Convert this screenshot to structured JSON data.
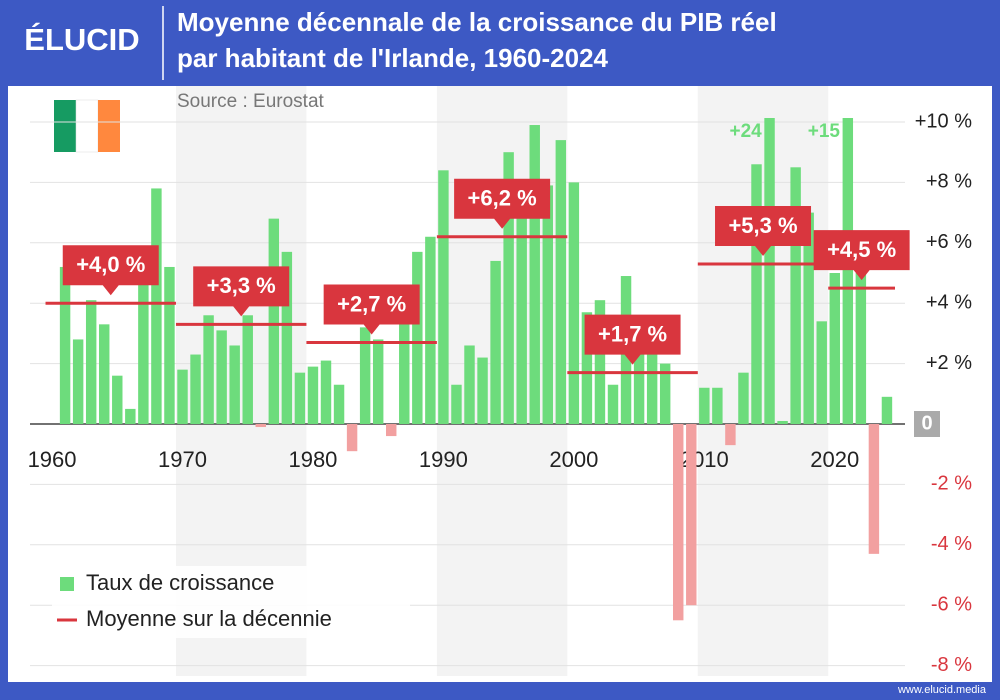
{
  "header": {
    "logo": "ÉLUCID",
    "title_lines": [
      "Moyenne décennale de la croissance du PIB réel",
      "par habitant de l'Irlande, 1960-2024"
    ],
    "source": "Source : Eurostat"
  },
  "footer": {
    "url": "www.elucid.media"
  },
  "chart_data": {
    "type": "bar",
    "xlim": [
      1959,
      2025
    ],
    "xticks": [
      1960,
      1970,
      1980,
      1990,
      2000,
      2010,
      2020
    ],
    "ylim": [
      -8,
      10
    ],
    "yticks": [
      {
        "value": 10,
        "label": "+10 %"
      },
      {
        "value": 8,
        "label": "+8 %"
      },
      {
        "value": 6,
        "label": "+6 %"
      },
      {
        "value": 4,
        "label": "+4 %"
      },
      {
        "value": 2,
        "label": "+2 %"
      },
      0,
      {
        "value": -2,
        "label": "-2 %"
      },
      {
        "value": -4,
        "label": "-4 %"
      },
      {
        "value": -6,
        "label": "-6 %"
      },
      {
        "value": -8,
        "label": "-8 %"
      }
    ],
    "grid": true,
    "legend": "lower left",
    "series": [
      {
        "name": "Taux de croissance",
        "color": "#6ddc7c",
        "negative_color": "#f2a0a0",
        "x": [
          1961,
          1962,
          1963,
          1964,
          1965,
          1966,
          1967,
          1968,
          1969,
          1970,
          1971,
          1972,
          1973,
          1974,
          1975,
          1976,
          1977,
          1978,
          1979,
          1980,
          1981,
          1982,
          1983,
          1984,
          1985,
          1986,
          1987,
          1988,
          1989,
          1990,
          1991,
          1992,
          1993,
          1994,
          1995,
          1996,
          1997,
          1998,
          1999,
          2000,
          2001,
          2002,
          2003,
          2004,
          2005,
          2006,
          2007,
          2008,
          2009,
          2010,
          2011,
          2012,
          2013,
          2014,
          2015,
          2016,
          2017,
          2018,
          2019,
          2020,
          2021,
          2022,
          2023,
          2024
        ],
        "values": [
          5.2,
          2.8,
          4.1,
          3.3,
          1.6,
          0.5,
          5.2,
          7.8,
          5.2,
          1.8,
          2.3,
          3.6,
          3.1,
          2.6,
          3.6,
          -0.1,
          6.8,
          5.7,
          1.7,
          1.9,
          2.1,
          1.3,
          -0.9,
          3.2,
          2.8,
          -0.4,
          4.4,
          5.7,
          6.2,
          8.4,
          1.3,
          2.6,
          2.2,
          5.4,
          9.0,
          7.5,
          9.9,
          7.9,
          9.4,
          8.0,
          3.7,
          4.1,
          1.3,
          4.9,
          2.5,
          2.5,
          2.0,
          -6.5,
          -6.0,
          1.2,
          1.2,
          -0.7,
          1.7,
          8.6,
          24,
          0.1,
          8.5,
          7.0,
          3.4,
          5.0,
          15,
          5.0,
          -4.3,
          0.9
        ],
        "value_labels": [
          null,
          null,
          null,
          null,
          null,
          null,
          null,
          null,
          null,
          null,
          null,
          null,
          null,
          null,
          null,
          null,
          null,
          null,
          null,
          null,
          null,
          null,
          null,
          null,
          null,
          null,
          null,
          null,
          null,
          null,
          null,
          null,
          null,
          null,
          null,
          null,
          null,
          null,
          null,
          null,
          null,
          null,
          null,
          null,
          null,
          null,
          null,
          null,
          null,
          null,
          null,
          null,
          null,
          null,
          "+24",
          null,
          null,
          null,
          null,
          null,
          "+15",
          null,
          null,
          null
        ]
      },
      {
        "name": "Moyenne sur la décennie",
        "type": "segment",
        "color": "#d9363e",
        "x": [
          1960,
          1970,
          1980,
          1990,
          2000,
          2010,
          2020
        ],
        "values": [
          4.0,
          3.3,
          2.7,
          6.2,
          1.7,
          5.3,
          4.5
        ],
        "value_labels": [
          "+4,0 %",
          "+3,3 %",
          "+2,7 %",
          "+6,2 %",
          "+1,7 %",
          "+5,3 %",
          "+4,5 %"
        ]
      }
    ]
  }
}
